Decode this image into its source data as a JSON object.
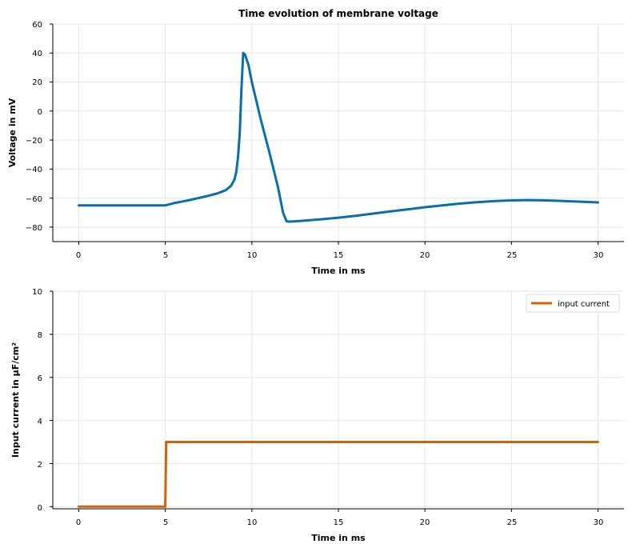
{
  "chart_data": [
    {
      "type": "line",
      "title": "Time evolution of membrane voltage",
      "xlabel": "Time in ms",
      "ylabel": "Voltage in mV",
      "xlim": [
        -1.5,
        31.5
      ],
      "ylim": [
        -90,
        60
      ],
      "xticks": [
        "0",
        "5",
        "10",
        "15",
        "20",
        "25",
        "30"
      ],
      "yticks": [
        "60",
        "40",
        "20",
        "0",
        "−20",
        "−40",
        "−60",
        "−80"
      ],
      "grid": true,
      "legend": "none",
      "series": [
        {
          "color": "#0a6eaa",
          "x": [
            0,
            5,
            5.5,
            6,
            6.5,
            7,
            7.5,
            8,
            8.5,
            8.8,
            9,
            9.1,
            9.2,
            9.3,
            9.4,
            9.5,
            9.6,
            9.8,
            10,
            10.5,
            11,
            11.5,
            11.8,
            12,
            12.2,
            12.5,
            13,
            14,
            15,
            16,
            17,
            18,
            19,
            20,
            21,
            22,
            23,
            24,
            25,
            26,
            27,
            28,
            29,
            30
          ],
          "y": [
            -65,
            -65,
            -63.5,
            -62.3,
            -61.1,
            -59.8,
            -58.4,
            -56.8,
            -54.5,
            -51.5,
            -47,
            -42,
            -32,
            -15,
            15,
            40,
            39,
            32,
            20,
            -5,
            -28,
            -52,
            -70,
            -76,
            -76.2,
            -76,
            -75.6,
            -74.6,
            -73.5,
            -72.2,
            -70.7,
            -69.2,
            -67.8,
            -66.3,
            -65,
            -63.8,
            -62.8,
            -62.1,
            -61.6,
            -61.4,
            -61.6,
            -62,
            -62.5,
            -63
          ]
        }
      ]
    },
    {
      "type": "line",
      "title": "",
      "xlabel": "Time in ms",
      "ylabel": "Input current in μF/cm²",
      "xlim": [
        -1.5,
        31.5
      ],
      "ylim": [
        -0.1,
        10
      ],
      "xticks": [
        "0",
        "5",
        "10",
        "15",
        "20",
        "25",
        "30"
      ],
      "yticks": [
        "10",
        "8",
        "6",
        "4",
        "2",
        "0"
      ],
      "grid": true,
      "legend": "top-right",
      "series": [
        {
          "name": "input current",
          "color": "#d2620a",
          "x": [
            0,
            5,
            5.05,
            30
          ],
          "y": [
            0,
            0,
            3,
            3
          ]
        }
      ]
    }
  ]
}
